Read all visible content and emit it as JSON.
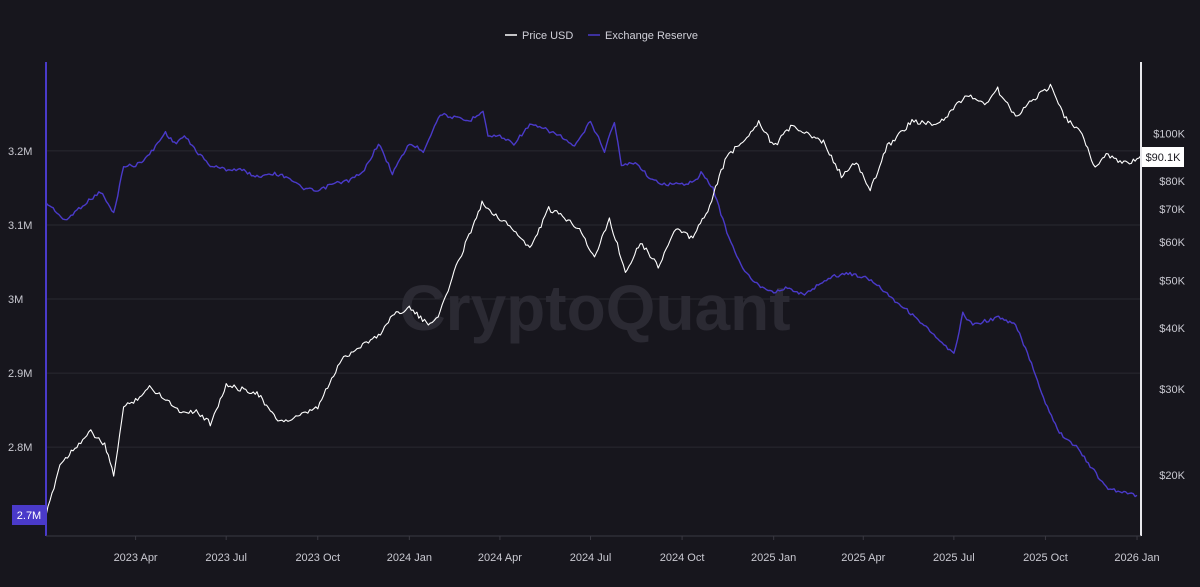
{
  "watermark": "CryptoQuant",
  "legend": [
    {
      "label": "Price USD",
      "color": "#ffffff"
    },
    {
      "label": "Exchange Reserve",
      "color": "#4a3ac9"
    }
  ],
  "left_axis_current_label": "2.7M",
  "right_axis_current_label": "$90.1K",
  "colors": {
    "background": "#17161d",
    "price": "#ffffff",
    "reserve": "#4a3ac9",
    "grid": "#2a2931",
    "axis_text": "#c9c9d1"
  },
  "chart_data": {
    "type": "line",
    "grid": true,
    "legend_position": "top-center",
    "x_axis": {
      "type": "date",
      "range": [
        "2023-01-01",
        "2026-01-05"
      ],
      "tick_labels": [
        "2023 Apr",
        "2023 Jul",
        "2023 Oct",
        "2024 Jan",
        "2024 Apr",
        "2024 Jul",
        "2024 Oct",
        "2025 Jan",
        "2025 Apr",
        "2025 Jul",
        "2025 Oct",
        "2026 Jan"
      ],
      "tick_dates": [
        "2023-04-01",
        "2023-07-01",
        "2023-10-01",
        "2024-01-01",
        "2024-04-01",
        "2024-07-01",
        "2024-10-01",
        "2025-01-01",
        "2025-04-01",
        "2025-07-01",
        "2025-10-01",
        "2026-01-01"
      ]
    },
    "y_left": {
      "scale": "linear",
      "range": [
        2.68,
        3.32
      ],
      "ticks": [
        2.8,
        2.9,
        3.0,
        3.1,
        3.2
      ],
      "tick_labels": [
        "2.8M",
        "2.9M",
        "3M",
        "3.1M",
        "3.2M"
      ],
      "unit": "M"
    },
    "y_right": {
      "scale": "log",
      "range": [
        15000,
        140000
      ],
      "ticks": [
        20000,
        30000,
        40000,
        50000,
        60000,
        70000,
        80000,
        100000
      ],
      "tick_labels": [
        "$20K",
        "$30K",
        "$40K",
        "$50K",
        "$60K",
        "$70K",
        "$80K",
        "$100K"
      ]
    },
    "series": [
      {
        "name": "Exchange Reserve",
        "axis": "left",
        "color": "#4a3ac9",
        "points": [
          [
            "2023-01-01",
            3.13
          ],
          [
            "2023-01-10",
            3.12
          ],
          [
            "2023-01-20",
            3.105
          ],
          [
            "2023-02-01",
            3.12
          ],
          [
            "2023-02-15",
            3.135
          ],
          [
            "2023-02-25",
            3.145
          ],
          [
            "2023-03-10",
            3.115
          ],
          [
            "2023-03-20",
            3.18
          ],
          [
            "2023-04-01",
            3.18
          ],
          [
            "2023-04-15",
            3.195
          ],
          [
            "2023-05-01",
            3.225
          ],
          [
            "2023-05-10",
            3.21
          ],
          [
            "2023-05-20",
            3.22
          ],
          [
            "2023-06-01",
            3.2
          ],
          [
            "2023-06-15",
            3.18
          ],
          [
            "2023-07-01",
            3.175
          ],
          [
            "2023-07-15",
            3.175
          ],
          [
            "2023-08-01",
            3.165
          ],
          [
            "2023-08-15",
            3.17
          ],
          [
            "2023-09-01",
            3.165
          ],
          [
            "2023-09-15",
            3.15
          ],
          [
            "2023-10-01",
            3.145
          ],
          [
            "2023-10-15",
            3.155
          ],
          [
            "2023-11-01",
            3.16
          ],
          [
            "2023-11-15",
            3.17
          ],
          [
            "2023-12-01",
            3.21
          ],
          [
            "2023-12-15",
            3.17
          ],
          [
            "2024-01-01",
            3.21
          ],
          [
            "2024-01-15",
            3.2
          ],
          [
            "2024-02-01",
            3.25
          ],
          [
            "2024-02-15",
            3.245
          ],
          [
            "2024-03-01",
            3.24
          ],
          [
            "2024-03-15",
            3.255
          ],
          [
            "2024-03-20",
            3.22
          ],
          [
            "2024-04-01",
            3.22
          ],
          [
            "2024-04-15",
            3.21
          ],
          [
            "2024-05-01",
            3.235
          ],
          [
            "2024-05-15",
            3.23
          ],
          [
            "2024-06-01",
            3.22
          ],
          [
            "2024-06-15",
            3.205
          ],
          [
            "2024-07-01",
            3.24
          ],
          [
            "2024-07-15",
            3.2
          ],
          [
            "2024-07-25",
            3.24
          ],
          [
            "2024-08-01",
            3.18
          ],
          [
            "2024-08-15",
            3.185
          ],
          [
            "2024-09-01",
            3.16
          ],
          [
            "2024-09-15",
            3.155
          ],
          [
            "2024-10-01",
            3.155
          ],
          [
            "2024-10-15",
            3.16
          ],
          [
            "2024-10-20",
            3.17
          ],
          [
            "2024-11-01",
            3.15
          ],
          [
            "2024-11-15",
            3.09
          ],
          [
            "2024-12-01",
            3.04
          ],
          [
            "2024-12-15",
            3.02
          ],
          [
            "2025-01-01",
            3.01
          ],
          [
            "2025-01-15",
            3.015
          ],
          [
            "2025-02-01",
            3.005
          ],
          [
            "2025-02-15",
            3.02
          ],
          [
            "2025-03-01",
            3.03
          ],
          [
            "2025-03-15",
            3.035
          ],
          [
            "2025-04-01",
            3.03
          ],
          [
            "2025-04-15",
            3.02
          ],
          [
            "2025-05-01",
            3.0
          ],
          [
            "2025-05-15",
            2.985
          ],
          [
            "2025-06-01",
            2.965
          ],
          [
            "2025-06-15",
            2.945
          ],
          [
            "2025-07-01",
            2.925
          ],
          [
            "2025-07-10",
            2.98
          ],
          [
            "2025-07-20",
            2.965
          ],
          [
            "2025-08-01",
            2.97
          ],
          [
            "2025-08-15",
            2.975
          ],
          [
            "2025-09-01",
            2.965
          ],
          [
            "2025-09-15",
            2.92
          ],
          [
            "2025-10-01",
            2.86
          ],
          [
            "2025-10-15",
            2.82
          ],
          [
            "2025-11-01",
            2.8
          ],
          [
            "2025-11-15",
            2.775
          ],
          [
            "2025-12-01",
            2.745
          ],
          [
            "2025-12-15",
            2.74
          ],
          [
            "2026-01-01",
            2.735
          ]
        ]
      },
      {
        "name": "Price USD",
        "axis": "right",
        "color": "#ffffff",
        "points": [
          [
            "2023-01-01",
            16500
          ],
          [
            "2023-01-15",
            21000
          ],
          [
            "2023-02-01",
            23000
          ],
          [
            "2023-02-15",
            24500
          ],
          [
            "2023-03-01",
            23000
          ],
          [
            "2023-03-10",
            20000
          ],
          [
            "2023-03-20",
            27500
          ],
          [
            "2023-04-01",
            28500
          ],
          [
            "2023-04-15",
            30200
          ],
          [
            "2023-05-01",
            28700
          ],
          [
            "2023-05-15",
            27000
          ],
          [
            "2023-06-01",
            27000
          ],
          [
            "2023-06-15",
            25500
          ],
          [
            "2023-07-01",
            30500
          ],
          [
            "2023-07-15",
            30000
          ],
          [
            "2023-08-01",
            29500
          ],
          [
            "2023-08-20",
            26000
          ],
          [
            "2023-09-01",
            25800
          ],
          [
            "2023-09-15",
            26500
          ],
          [
            "2023-10-01",
            27500
          ],
          [
            "2023-10-25",
            34500
          ],
          [
            "2023-11-15",
            37000
          ],
          [
            "2023-12-01",
            38500
          ],
          [
            "2023-12-15",
            42500
          ],
          [
            "2024-01-01",
            44000
          ],
          [
            "2024-01-20",
            40500
          ],
          [
            "2024-02-01",
            43000
          ],
          [
            "2024-02-15",
            52000
          ],
          [
            "2024-03-01",
            62000
          ],
          [
            "2024-03-14",
            72000
          ],
          [
            "2024-04-01",
            67000
          ],
          [
            "2024-04-15",
            63500
          ],
          [
            "2024-05-01",
            58000
          ],
          [
            "2024-05-20",
            70000
          ],
          [
            "2024-06-01",
            68000
          ],
          [
            "2024-06-20",
            64000
          ],
          [
            "2024-07-05",
            55500
          ],
          [
            "2024-07-20",
            67000
          ],
          [
            "2024-08-05",
            52000
          ],
          [
            "2024-08-20",
            60000
          ],
          [
            "2024-09-07",
            53500
          ],
          [
            "2024-09-25",
            64000
          ],
          [
            "2024-10-10",
            61000
          ],
          [
            "2024-10-25",
            68000
          ],
          [
            "2024-11-15",
            90000
          ],
          [
            "2024-12-01",
            96000
          ],
          [
            "2024-12-17",
            106000
          ],
          [
            "2025-01-01",
            94000
          ],
          [
            "2025-01-20",
            104000
          ],
          [
            "2025-02-01",
            100000
          ],
          [
            "2025-02-20",
            96000
          ],
          [
            "2025-03-10",
            82000
          ],
          [
            "2025-03-25",
            87000
          ],
          [
            "2025-04-08",
            76500
          ],
          [
            "2025-04-25",
            94000
          ],
          [
            "2025-05-20",
            106000
          ],
          [
            "2025-06-15",
            104000
          ],
          [
            "2025-07-14",
            120000
          ],
          [
            "2025-08-01",
            115000
          ],
          [
            "2025-08-14",
            123000
          ],
          [
            "2025-09-01",
            108000
          ],
          [
            "2025-09-15",
            116000
          ],
          [
            "2025-10-06",
            125000
          ],
          [
            "2025-10-20",
            108000
          ],
          [
            "2025-11-05",
            101000
          ],
          [
            "2025-11-20",
            85000
          ],
          [
            "2025-12-01",
            91000
          ],
          [
            "2025-12-15",
            87000
          ],
          [
            "2026-01-01",
            88000
          ],
          [
            "2026-01-05",
            90100
          ]
        ]
      }
    ]
  }
}
